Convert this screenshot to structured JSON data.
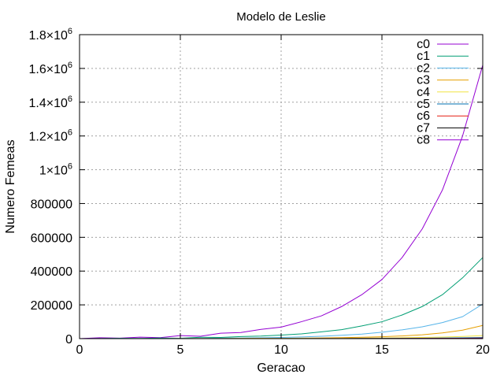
{
  "chart_data": {
    "type": "line",
    "title": "Modelo de Leslie",
    "xlabel": "Geracao",
    "ylabel": "Numero Femeas",
    "xlim": [
      0,
      20
    ],
    "ylim": [
      0,
      1800000
    ],
    "xticks": [
      0,
      5,
      10,
      15,
      20
    ],
    "xtick_labels": [
      "0",
      "5",
      "10",
      "15",
      "20"
    ],
    "yticks": [
      0,
      200000,
      400000,
      600000,
      800000,
      1000000,
      1200000,
      1400000,
      1600000,
      1800000
    ],
    "ytick_labels": [
      {
        "mant": "0",
        "exp": ""
      },
      {
        "mant": "200000",
        "exp": ""
      },
      {
        "mant": "400000",
        "exp": ""
      },
      {
        "mant": "600000",
        "exp": ""
      },
      {
        "mant": "800000",
        "exp": ""
      },
      {
        "mant": "1×10",
        "exp": "6"
      },
      {
        "mant": "1.2×10",
        "exp": "6"
      },
      {
        "mant": "1.4×10",
        "exp": "6"
      },
      {
        "mant": "1.6×10",
        "exp": "6"
      },
      {
        "mant": "1.8×10",
        "exp": "6"
      }
    ],
    "grid": true,
    "legend_position": "top-right",
    "x": [
      0,
      1,
      2,
      3,
      4,
      5,
      6,
      7,
      8,
      9,
      10,
      11,
      12,
      13,
      14,
      15,
      16,
      17,
      18,
      19,
      20
    ],
    "series": [
      {
        "name": "c0",
        "color": "#9400d3",
        "values": [
          0,
          5000,
          3000,
          9000,
          6000,
          18000,
          14000,
          32000,
          36000,
          55000,
          68000,
          100000,
          135000,
          190000,
          260000,
          350000,
          480000,
          650000,
          880000,
          1200000,
          1620000
        ]
      },
      {
        "name": "c1",
        "color": "#009e73",
        "values": [
          0,
          800,
          1500,
          1300,
          3500,
          2500,
          8000,
          7000,
          12000,
          15000,
          21000,
          28000,
          40000,
          53000,
          75000,
          100000,
          140000,
          190000,
          260000,
          360000,
          480000
        ]
      },
      {
        "name": "c2",
        "color": "#56b4e9",
        "values": [
          0,
          200,
          400,
          800,
          700,
          1500,
          1200,
          3000,
          3500,
          5500,
          7000,
          10000,
          14000,
          20000,
          27000,
          38000,
          52000,
          70000,
          95000,
          130000,
          205000
        ]
      },
      {
        "name": "c3",
        "color": "#e69f00",
        "values": [
          0,
          50,
          100,
          200,
          300,
          400,
          500,
          700,
          1000,
          1500,
          2000,
          3000,
          4200,
          5800,
          8000,
          11000,
          16000,
          23000,
          34000,
          50000,
          78000
        ]
      },
      {
        "name": "c4",
        "color": "#f0e442",
        "values": [
          0,
          20,
          40,
          60,
          100,
          150,
          200,
          300,
          400,
          600,
          800,
          1100,
          1500,
          2000,
          2700,
          3600,
          5000,
          7000,
          9500,
          13000,
          18000
        ]
      },
      {
        "name": "c5",
        "color": "#0072b2",
        "values": [
          0,
          10,
          20,
          30,
          50,
          70,
          100,
          130,
          180,
          240,
          320,
          430,
          580,
          780,
          1000,
          1400,
          1900,
          2600,
          3500,
          4700,
          6500
        ]
      },
      {
        "name": "c6",
        "color": "#e51e10",
        "values": [
          0,
          5,
          10,
          15,
          25,
          35,
          50,
          70,
          95,
          130,
          175,
          230,
          310,
          420,
          560,
          750,
          1000,
          1350,
          1800,
          2400,
          3300
        ]
      },
      {
        "name": "c7",
        "color": "#000000",
        "values": [
          0,
          2,
          4,
          8,
          12,
          18,
          26,
          36,
          50,
          68,
          92,
          125,
          170,
          230,
          310,
          420,
          570,
          770,
          1040,
          1400,
          1900
        ]
      },
      {
        "name": "c8",
        "color": "#9400d3",
        "values": [
          0,
          1,
          2,
          4,
          6,
          9,
          13,
          18,
          25,
          34,
          46,
          62,
          84,
          113,
          152,
          205,
          277,
          374,
          505,
          682,
          920
        ]
      }
    ]
  }
}
